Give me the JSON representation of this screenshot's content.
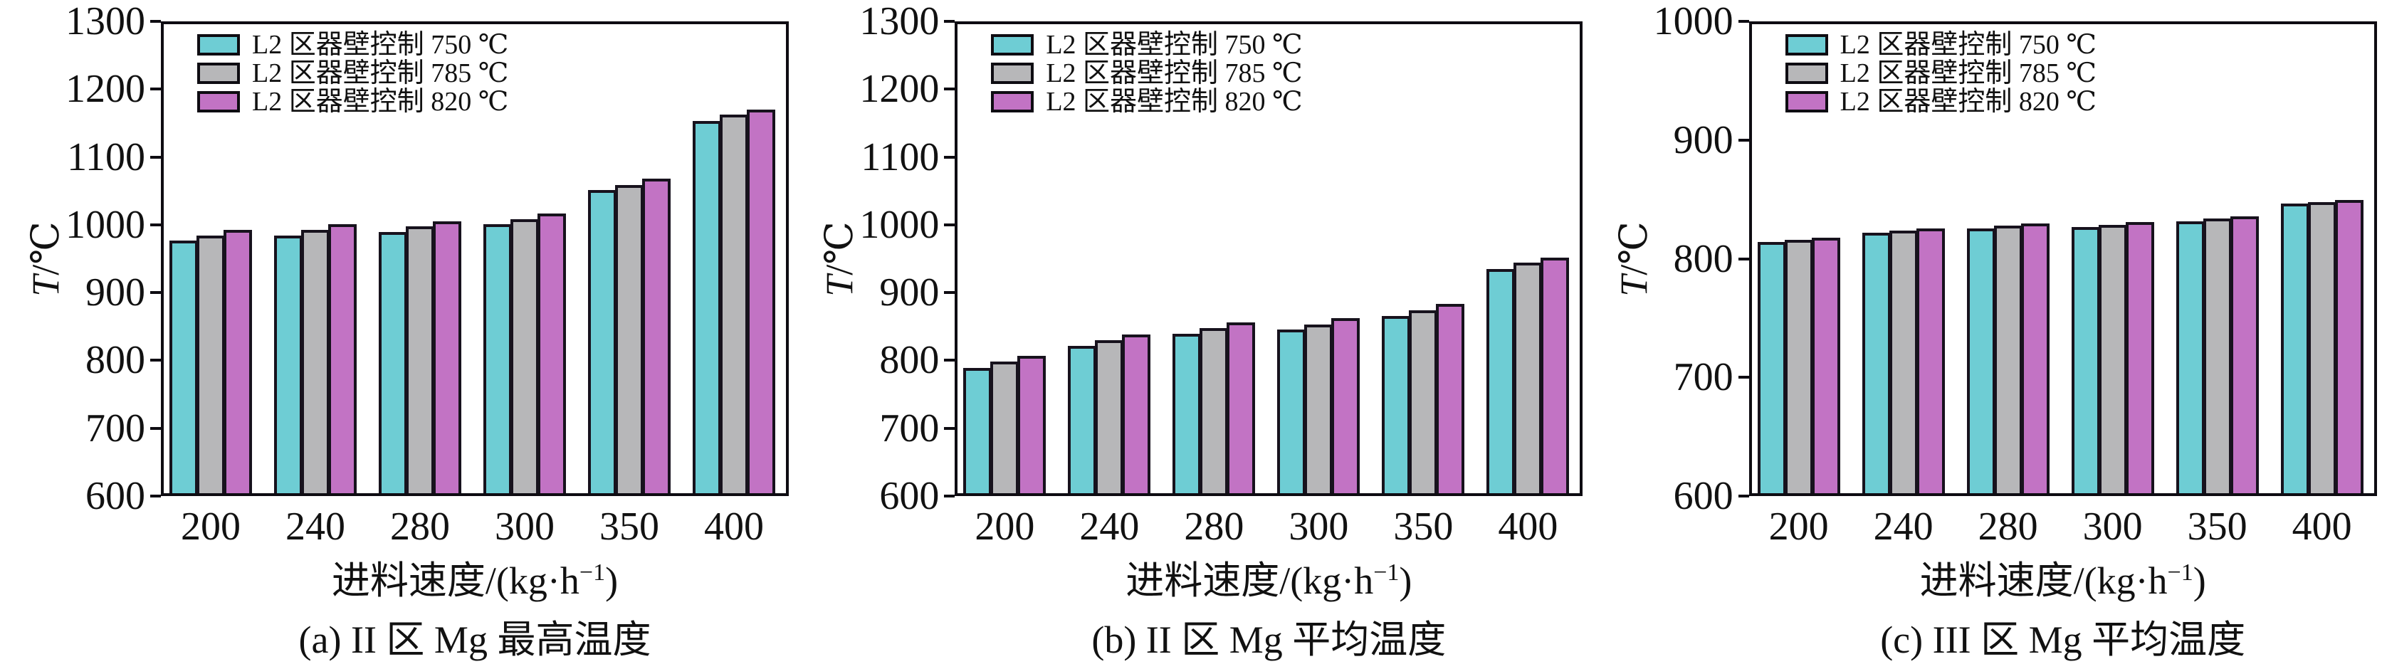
{
  "labels": {
    "ylabel_var": "T",
    "ylabel_unit": "/℃",
    "xlabel_prefix": "进料速度/(kg·h",
    "xlabel_sup": "−1",
    "xlabel_suffix": ")"
  },
  "colors": {
    "series": [
      "#6ECDD4",
      "#B7B7B9",
      "#C273C4"
    ],
    "bar_edge": "#17121d",
    "axis": "#0e0c12",
    "background": "#ffffff"
  },
  "legend": {
    "items": [
      "L2 区器壁控制 750 ℃",
      "L2 区器壁控制 785 ℃",
      "L2 区器壁控制 820 ℃"
    ]
  },
  "chart_data": [
    {
      "type": "bar",
      "title": "(a) II 区 Mg 最高温度",
      "xlabel": "进料速度/(kg·h⁻¹)",
      "ylabel": "T/℃",
      "categories": [
        200,
        240,
        280,
        300,
        350,
        400
      ],
      "series": [
        {
          "name": "L2 区器壁控制 750 ℃",
          "color": "#6ECDD4",
          "values": [
            977,
            985,
            990,
            1002,
            1052,
            1156
          ]
        },
        {
          "name": "L2 区器壁控制 785 ℃",
          "color": "#B7B7B9",
          "values": [
            985,
            993,
            998,
            1009,
            1060,
            1165
          ]
        },
        {
          "name": "L2 区器壁控制 820 ℃",
          "color": "#C273C4",
          "values": [
            993,
            1001,
            1006,
            1017,
            1069,
            1173
          ]
        }
      ],
      "ylim": [
        600,
        1300
      ],
      "y_ticks": [
        600,
        700,
        800,
        900,
        1000,
        1100,
        1200,
        1300
      ],
      "grid": false,
      "legend_position": "upper left"
    },
    {
      "type": "bar",
      "title": "(b) II 区 Mg 平均温度",
      "xlabel": "进料速度/(kg·h⁻¹)",
      "ylabel": "T/℃",
      "categories": [
        200,
        240,
        280,
        300,
        350,
        400
      ],
      "series": [
        {
          "name": "L2 区器壁控制 750 ℃",
          "color": "#6ECDD4",
          "values": [
            787,
            820,
            838,
            844,
            864,
            935
          ]
        },
        {
          "name": "L2 区器壁控制 785 ℃",
          "color": "#B7B7B9",
          "values": [
            796,
            828,
            846,
            852,
            873,
            944
          ]
        },
        {
          "name": "L2 区器壁控制 820 ℃",
          "color": "#C273C4",
          "values": [
            805,
            837,
            855,
            861,
            883,
            952
          ]
        }
      ],
      "ylim": [
        600,
        1300
      ],
      "y_ticks": [
        600,
        700,
        800,
        900,
        1000,
        1100,
        1200,
        1300
      ],
      "grid": false,
      "legend_position": "upper left"
    },
    {
      "type": "bar",
      "title": "(c) III 区 Mg 平均温度",
      "xlabel": "进料速度/(kg·h⁻¹)",
      "ylabel": "T/℃",
      "categories": [
        200,
        240,
        280,
        300,
        350,
        400
      ],
      "series": [
        {
          "name": "L2 区器壁控制 750 ℃",
          "color": "#6ECDD4",
          "values": [
            814,
            822,
            826,
            827,
            832,
            847
          ]
        },
        {
          "name": "L2 区器壁控制 785 ℃",
          "color": "#B7B7B9",
          "values": [
            816,
            824,
            828,
            829,
            834,
            848
          ]
        },
        {
          "name": "L2 区器壁控制 820 ℃",
          "color": "#C273C4",
          "values": [
            818,
            826,
            830,
            831,
            836,
            850
          ]
        }
      ],
      "ylim": [
        600,
        1000
      ],
      "y_ticks": [
        600,
        700,
        800,
        900,
        1000
      ],
      "grid": false,
      "legend_position": "upper left"
    }
  ]
}
